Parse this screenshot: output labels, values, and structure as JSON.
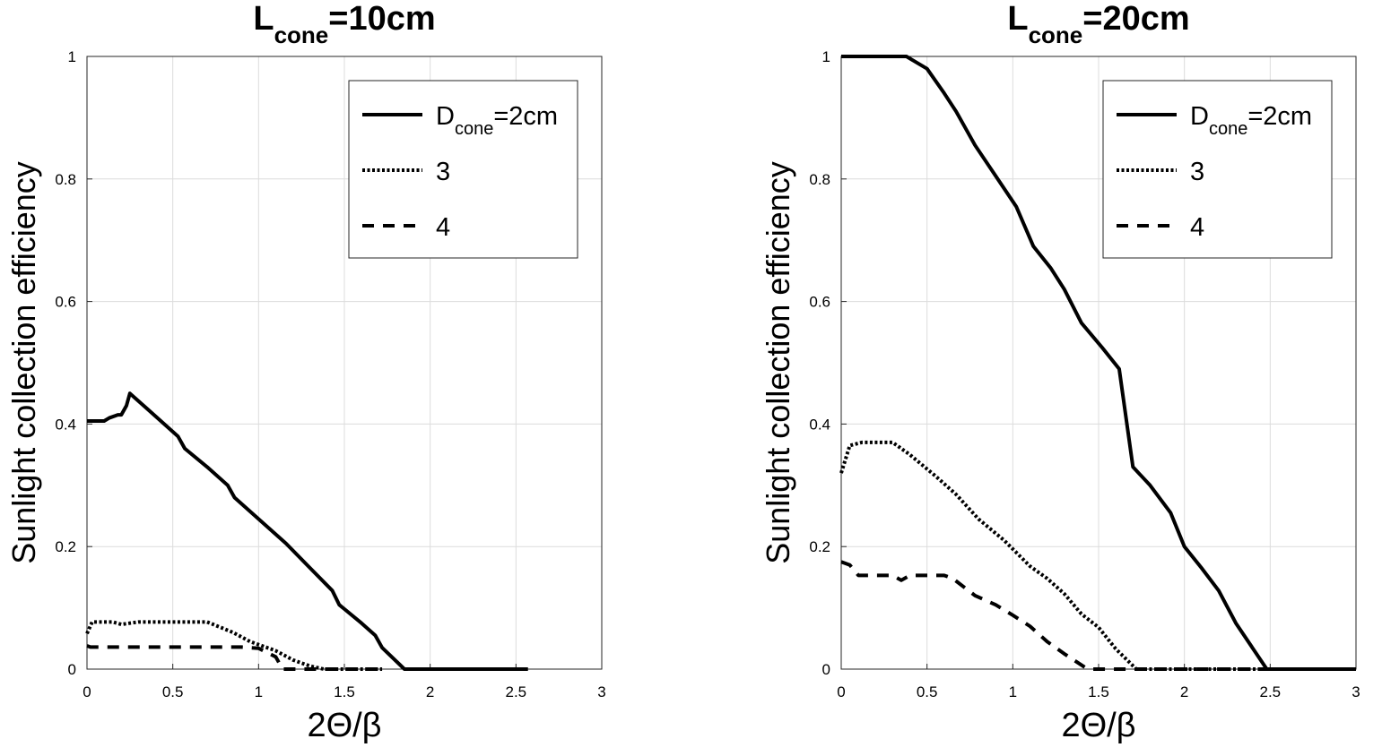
{
  "chart_data": [
    {
      "type": "line",
      "title": {
        "main": "L",
        "sub": "cone",
        "rest": "=10cm"
      },
      "xlabel": "2Θ/β",
      "ylabel": "Sunlight collection efficiency",
      "xlim": [
        0,
        3
      ],
      "ylim": [
        0,
        1
      ],
      "xticks": [
        0,
        0.5,
        1,
        1.5,
        2,
        2.5,
        3
      ],
      "xtick_labels": [
        "0",
        "0.5",
        "1",
        "1.5",
        "2",
        "2.5",
        "3"
      ],
      "yticks": [
        0,
        0.2,
        0.4,
        0.6,
        0.8,
        1
      ],
      "ytick_labels": [
        "0",
        "0.2",
        "0.4",
        "0.6",
        "0.8",
        "1"
      ],
      "grid": true,
      "legend_position": "top-right",
      "series": [
        {
          "legend": {
            "main": "D",
            "sub": "cone",
            "rest": "=2cm"
          },
          "style": "solid",
          "x": [
            0,
            0.1,
            0.13,
            0.18,
            0.2,
            0.23,
            0.25,
            0.35,
            0.45,
            0.53,
            0.57,
            0.7,
            0.82,
            0.86,
            0.98,
            1.1,
            1.16,
            1.3,
            1.43,
            1.47,
            1.6,
            1.68,
            1.72,
            1.85,
            2.57
          ],
          "y": [
            0.405,
            0.405,
            0.41,
            0.415,
            0.415,
            0.43,
            0.45,
            0.425,
            0.4,
            0.38,
            0.36,
            0.33,
            0.3,
            0.28,
            0.25,
            0.22,
            0.205,
            0.165,
            0.128,
            0.105,
            0.075,
            0.055,
            0.035,
            0,
            0
          ]
        },
        {
          "legend": {
            "main": "3",
            "sub": "",
            "rest": ""
          },
          "style": "dotted",
          "x": [
            0,
            0.03,
            0.15,
            0.2,
            0.3,
            0.7,
            0.85,
            0.95,
            1.1,
            1.2,
            1.3,
            1.38,
            1.72
          ],
          "y": [
            0.058,
            0.077,
            0.077,
            0.073,
            0.077,
            0.077,
            0.06,
            0.045,
            0.03,
            0.015,
            0.005,
            0,
            0
          ]
        },
        {
          "legend": {
            "main": "4",
            "sub": "",
            "rest": ""
          },
          "style": "dashed",
          "x": [
            0,
            0.02,
            0.9,
            1.0,
            1.1,
            1.14,
            1.72
          ],
          "y": [
            0.038,
            0.036,
            0.036,
            0.034,
            0.02,
            0,
            0
          ]
        }
      ]
    },
    {
      "type": "line",
      "title": {
        "main": "L",
        "sub": "cone",
        "rest": "=20cm"
      },
      "xlabel": "2Θ/β",
      "ylabel": "Sunlight collection efficiency",
      "xlim": [
        0,
        3
      ],
      "ylim": [
        0,
        1
      ],
      "xticks": [
        0,
        0.5,
        1,
        1.5,
        2,
        2.5,
        3
      ],
      "xtick_labels": [
        "0",
        "0.5",
        "1",
        "1.5",
        "2",
        "2.5",
        "3"
      ],
      "yticks": [
        0,
        0.2,
        0.4,
        0.6,
        0.8,
        1
      ],
      "ytick_labels": [
        "0",
        "0.2",
        "0.4",
        "0.6",
        "0.8",
        "1"
      ],
      "grid": true,
      "legend_position": "top-right",
      "series": [
        {
          "legend": {
            "main": "D",
            "sub": "cone",
            "rest": "=2cm"
          },
          "style": "solid",
          "x": [
            0,
            0.38,
            0.5,
            0.6,
            0.67,
            0.78,
            0.9,
            1.02,
            1.12,
            1.22,
            1.3,
            1.4,
            1.52,
            1.62,
            1.7,
            1.8,
            1.92,
            2.0,
            2.1,
            2.2,
            2.3,
            2.48,
            3.0
          ],
          "y": [
            1,
            1,
            0.98,
            0.94,
            0.91,
            0.855,
            0.805,
            0.755,
            0.69,
            0.655,
            0.62,
            0.565,
            0.525,
            0.49,
            0.33,
            0.3,
            0.255,
            0.2,
            0.165,
            0.128,
            0.075,
            0,
            0
          ]
        },
        {
          "legend": {
            "main": "3",
            "sub": "",
            "rest": ""
          },
          "style": "dotted",
          "x": [
            0,
            0.05,
            0.12,
            0.3,
            0.4,
            0.55,
            0.67,
            0.8,
            0.95,
            1.1,
            1.2,
            1.3,
            1.4,
            1.5,
            1.6,
            1.72,
            3.0
          ],
          "y": [
            0.32,
            0.365,
            0.37,
            0.37,
            0.35,
            0.315,
            0.285,
            0.245,
            0.21,
            0.168,
            0.148,
            0.123,
            0.09,
            0.068,
            0.033,
            0,
            0
          ]
        },
        {
          "legend": {
            "main": "4",
            "sub": "",
            "rest": ""
          },
          "style": "dashed",
          "x": [
            0,
            0.05,
            0.1,
            0.3,
            0.35,
            0.4,
            0.6,
            0.65,
            0.78,
            0.9,
            1.0,
            1.1,
            1.2,
            1.3,
            1.42,
            1.45,
            3.0
          ],
          "y": [
            0.175,
            0.17,
            0.153,
            0.153,
            0.145,
            0.153,
            0.153,
            0.148,
            0.12,
            0.105,
            0.088,
            0.07,
            0.045,
            0.025,
            0.003,
            0,
            0
          ]
        }
      ]
    }
  ]
}
